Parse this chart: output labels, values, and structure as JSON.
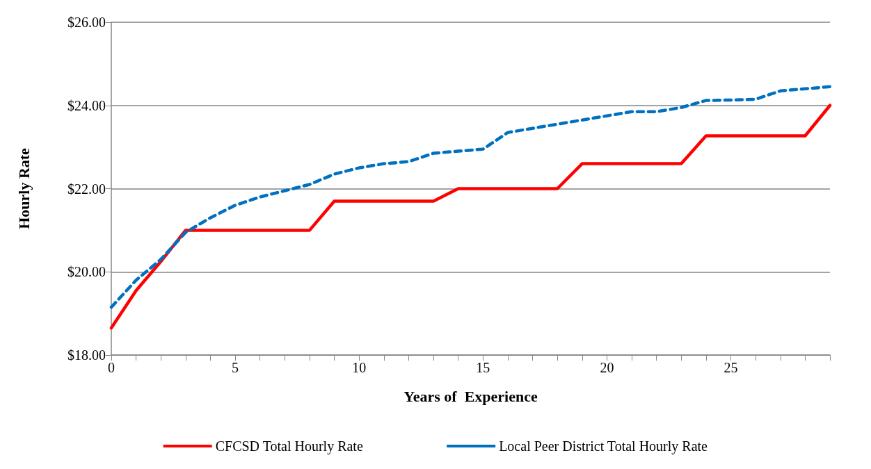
{
  "chart_data": {
    "type": "line",
    "xlabel": "Years of  Experience",
    "ylabel": "Hourly Rate",
    "x": [
      0,
      1,
      2,
      3,
      4,
      5,
      6,
      7,
      8,
      9,
      10,
      11,
      12,
      13,
      14,
      15,
      16,
      17,
      18,
      19,
      20,
      21,
      22,
      23,
      24,
      25,
      26,
      27,
      28,
      29
    ],
    "series": [
      {
        "name": "CFCSD Total Hourly Rate",
        "color": "#ff0000",
        "line_style": "solid",
        "values": [
          18.65,
          19.55,
          20.25,
          21.0,
          21.0,
          21.0,
          21.0,
          21.0,
          21.0,
          21.7,
          21.7,
          21.7,
          21.7,
          21.7,
          22.0,
          22.0,
          22.0,
          22.0,
          22.0,
          22.6,
          22.6,
          22.6,
          22.6,
          22.6,
          23.27,
          23.27,
          23.27,
          23.27,
          23.27,
          24.0
        ]
      },
      {
        "name": "Local Peer District Total Hourly Rate",
        "color": "#0070c0",
        "line_style": "dashed",
        "values": [
          19.15,
          19.8,
          20.3,
          20.95,
          21.3,
          21.6,
          21.8,
          21.95,
          22.1,
          22.35,
          22.5,
          22.6,
          22.65,
          22.85,
          22.9,
          22.95,
          23.35,
          23.45,
          23.55,
          23.65,
          23.75,
          23.85,
          23.85,
          23.95,
          24.12,
          24.13,
          24.15,
          24.35,
          24.4,
          24.45
        ]
      }
    ],
    "xlim": [
      0,
      29
    ],
    "xticks": [
      0,
      {
        "value": 1,
        "label": null
      },
      {
        "value": 2,
        "label": null
      },
      {
        "value": 3,
        "label": null
      },
      {
        "value": 4,
        "label": null
      },
      5,
      {
        "value": 6,
        "label": null
      },
      {
        "value": 7,
        "label": null
      },
      {
        "value": 8,
        "label": null
      },
      {
        "value": 9,
        "label": null
      },
      10,
      {
        "value": 11,
        "label": null
      },
      {
        "value": 12,
        "label": null
      },
      {
        "value": 13,
        "label": null
      },
      {
        "value": 14,
        "label": null
      },
      15,
      {
        "value": 16,
        "label": null
      },
      {
        "value": 17,
        "label": null
      },
      {
        "value": 18,
        "label": null
      },
      {
        "value": 19,
        "label": null
      },
      20,
      {
        "value": 21,
        "label": null
      },
      {
        "value": 22,
        "label": null
      },
      {
        "value": 23,
        "label": null
      },
      {
        "value": 24,
        "label": null
      },
      25,
      {
        "value": 26,
        "label": null
      },
      {
        "value": 27,
        "label": null
      },
      {
        "value": 28,
        "label": null
      },
      {
        "value": 29,
        "label": null
      }
    ],
    "ylim": [
      18,
      26
    ],
    "yticks": [
      {
        "value": 18,
        "label": "$18.00"
      },
      {
        "value": 20,
        "label": "$20.00"
      },
      {
        "value": 22,
        "label": "$22.00"
      },
      {
        "value": 24,
        "label": "$24.00"
      },
      {
        "value": 26,
        "label": "$26.00"
      }
    ],
    "grid": "y",
    "legend": "bottom",
    "marker": "none"
  }
}
